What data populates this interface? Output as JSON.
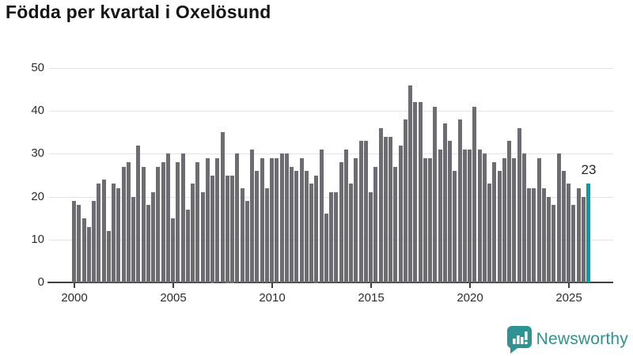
{
  "title": "Födda per kvartal i Oxelösund",
  "annotation": {
    "label": "23"
  },
  "logo": {
    "text": "Newsworthy"
  },
  "colors": {
    "bar": "#6c6c72",
    "highlight": "#00a0a5",
    "gridline": "#e3e3e3",
    "axis": "#404040",
    "tick_label": "#2d2d2d",
    "title": "#151515",
    "logo_teal": "#32918f",
    "background": "#ffffff"
  },
  "chart_data": {
    "type": "bar",
    "title": "Födda per kvartal i Oxelösund",
    "xlabel": "",
    "ylabel": "",
    "x_start": "2000 Q1",
    "x_end": "2026 Q1",
    "frequency": "quarterly",
    "x_tick_labels": [
      "2000",
      "2005",
      "2010",
      "2015",
      "2020",
      "2025"
    ],
    "y_ticks": [
      0,
      10,
      20,
      30,
      40,
      50
    ],
    "ylim": [
      0,
      50
    ],
    "grid": "horizontal",
    "legend": "none",
    "highlight_last": true,
    "highlight_label": "23",
    "series": [
      {
        "name": "Födda",
        "values": [
          19,
          18,
          15,
          13,
          19,
          23,
          24,
          12,
          23,
          22,
          27,
          28,
          20,
          32,
          27,
          18,
          21,
          27,
          28,
          30,
          15,
          28,
          30,
          17,
          23,
          28,
          21,
          29,
          25,
          29,
          35,
          25,
          25,
          30,
          22,
          19,
          31,
          26,
          29,
          22,
          29,
          29,
          30,
          30,
          27,
          26,
          29,
          26,
          23,
          25,
          31,
          16,
          21,
          21,
          28,
          31,
          23,
          29,
          33,
          33,
          21,
          27,
          36,
          34,
          34,
          27,
          32,
          38,
          46,
          42,
          42,
          29,
          29,
          41,
          31,
          37,
          33,
          26,
          38,
          31,
          31,
          41,
          31,
          30,
          23,
          28,
          26,
          29,
          33,
          29,
          36,
          30,
          22,
          22,
          29,
          22,
          20,
          18,
          30,
          26,
          23,
          18,
          22,
          20,
          23
        ]
      }
    ]
  }
}
